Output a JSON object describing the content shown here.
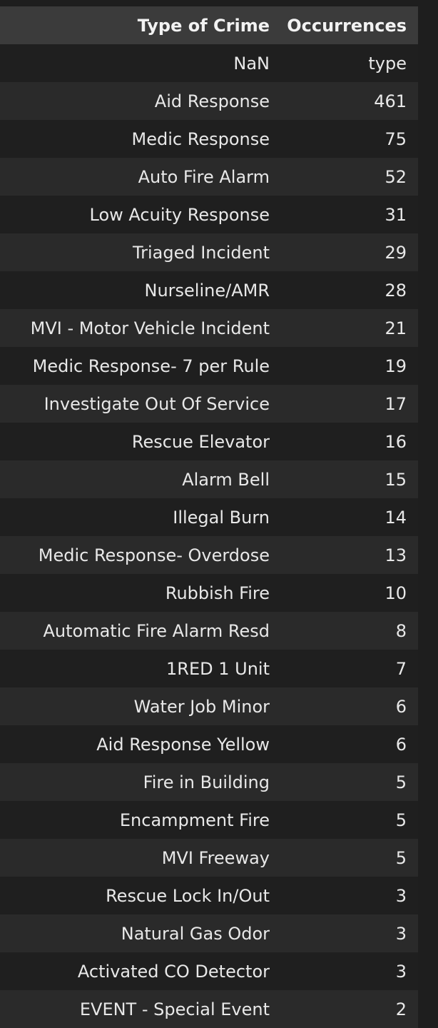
{
  "table": {
    "headers": [
      "Type of Crime",
      "Occurrences"
    ],
    "rows": [
      [
        "NaN",
        "type"
      ],
      [
        "Aid Response",
        "461"
      ],
      [
        "Medic Response",
        "75"
      ],
      [
        "Auto Fire Alarm",
        "52"
      ],
      [
        "Low Acuity Response",
        "31"
      ],
      [
        "Triaged Incident",
        "29"
      ],
      [
        "Nurseline/AMR",
        "28"
      ],
      [
        "MVI - Motor Vehicle Incident",
        "21"
      ],
      [
        "Medic Response- 7 per Rule",
        "19"
      ],
      [
        "Investigate Out Of Service",
        "17"
      ],
      [
        "Rescue Elevator",
        "16"
      ],
      [
        "Alarm Bell",
        "15"
      ],
      [
        "Illegal Burn",
        "14"
      ],
      [
        "Medic Response- Overdose",
        "13"
      ],
      [
        "Rubbish Fire",
        "10"
      ],
      [
        "Automatic Fire Alarm Resd",
        "8"
      ],
      [
        "1RED 1 Unit",
        "7"
      ],
      [
        "Water Job Minor",
        "6"
      ],
      [
        "Aid Response Yellow",
        "6"
      ],
      [
        "Fire in Building",
        "5"
      ],
      [
        "Encampment Fire",
        "5"
      ],
      [
        "MVI Freeway",
        "5"
      ],
      [
        "Rescue Lock In/Out",
        "3"
      ],
      [
        "Natural Gas Odor",
        "3"
      ],
      [
        "Activated CO Detector",
        "3"
      ],
      [
        "EVENT - Special Event",
        "2"
      ]
    ]
  }
}
